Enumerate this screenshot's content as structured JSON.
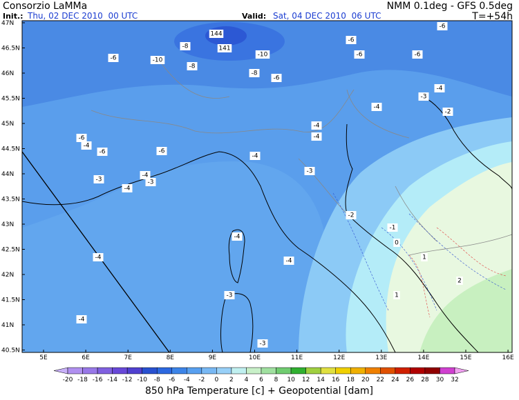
{
  "header": {
    "producer": "Consorzio LaMMa",
    "init_label": "Init.:",
    "init_time": "Thu, 02 DEC 2010  00 UTC",
    "model": "NMM 0.1deg - GFS 0.5deg",
    "valid_label": "Valid:",
    "valid_time": "Sat, 04 DEC 2010  06 UTC",
    "lead_time": "T=+54h"
  },
  "map": {
    "lat_labels": [
      "47N",
      "46.5N",
      "46N",
      "45.5N",
      "45N",
      "44.5N",
      "44N",
      "43.5N",
      "43N",
      "42.5N",
      "42N",
      "41.5N",
      "41N",
      "40.5N"
    ],
    "lon_labels": [
      "5E",
      "6E",
      "7E",
      "8E",
      "9E",
      "10E",
      "11E",
      "12E",
      "13E",
      "14E",
      "15E",
      "16E"
    ],
    "contour_labels": [
      "-6",
      "-10",
      "-8",
      "-8",
      "144",
      "141",
      "-10",
      "-8",
      "-6",
      "-6",
      "-6",
      "-6",
      "-6",
      "-4",
      "-3",
      "-4",
      "-2",
      "-4",
      "-4",
      "-6",
      "-4",
      "-6",
      "-6",
      "-4",
      "-3",
      "-4",
      "-3",
      "-3",
      "-4",
      "-2",
      "-1",
      "0",
      "-4",
      "-4",
      "-4",
      "1",
      "2",
      "1",
      "-3",
      "-4",
      "-3"
    ]
  },
  "colorbar": {
    "labels": [
      -20,
      -18,
      -16,
      -14,
      -12,
      -10,
      -8,
      -6,
      -4,
      -2,
      0,
      2,
      4,
      6,
      8,
      10,
      12,
      14,
      16,
      18,
      20,
      22,
      24,
      26,
      28,
      30,
      32
    ],
    "colors": [
      "#c8b0f8",
      "#b090f0",
      "#9878e8",
      "#8060e0",
      "#6848d8",
      "#5040d0",
      "#2850d0",
      "#2c68e0",
      "#3c84e8",
      "#58a0f0",
      "#78b8f4",
      "#98d0f8",
      "#c0f0f0",
      "#c8f0c8",
      "#a0e0a0",
      "#70cc70",
      "#30b030",
      "#a0d040",
      "#e0e040",
      "#f0d000",
      "#f0b000",
      "#f08000",
      "#e05000",
      "#d02000",
      "#b00000",
      "#900000",
      "#d040d0",
      "#f0a0f0"
    ],
    "title": "850 hPa Temperature [c] + Geopotential [dam]"
  }
}
